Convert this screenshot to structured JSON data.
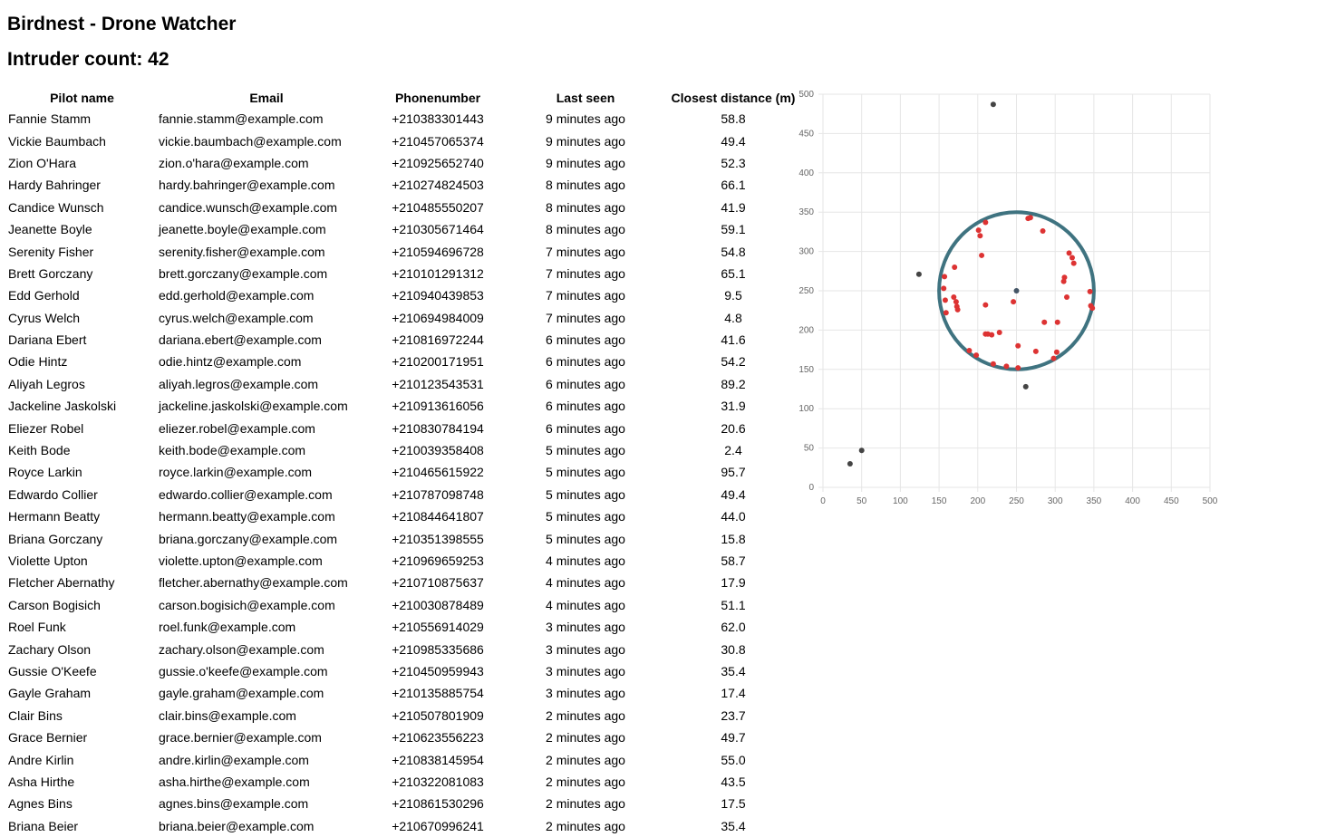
{
  "header": {
    "title": "Birdnest - Drone Watcher",
    "intruder_label": "Intruder count:",
    "intruder_count": "42"
  },
  "table": {
    "columns": [
      "Pilot name",
      "Email",
      "Phonenumber",
      "Last seen",
      "Closest distance (m)"
    ],
    "rows": [
      [
        "Fannie Stamm",
        "fannie.stamm@example.com",
        "+210383301443",
        "9 minutes ago",
        "58.8"
      ],
      [
        "Vickie Baumbach",
        "vickie.baumbach@example.com",
        "+210457065374",
        "9 minutes ago",
        "49.4"
      ],
      [
        "Zion O'Hara",
        "zion.o'hara@example.com",
        "+210925652740",
        "9 minutes ago",
        "52.3"
      ],
      [
        "Hardy Bahringer",
        "hardy.bahringer@example.com",
        "+210274824503",
        "8 minutes ago",
        "66.1"
      ],
      [
        "Candice Wunsch",
        "candice.wunsch@example.com",
        "+210485550207",
        "8 minutes ago",
        "41.9"
      ],
      [
        "Jeanette Boyle",
        "jeanette.boyle@example.com",
        "+210305671464",
        "8 minutes ago",
        "59.1"
      ],
      [
        "Serenity Fisher",
        "serenity.fisher@example.com",
        "+210594696728",
        "7 minutes ago",
        "54.8"
      ],
      [
        "Brett Gorczany",
        "brett.gorczany@example.com",
        "+210101291312",
        "7 minutes ago",
        "65.1"
      ],
      [
        "Edd Gerhold",
        "edd.gerhold@example.com",
        "+210940439853",
        "7 minutes ago",
        "9.5"
      ],
      [
        "Cyrus Welch",
        "cyrus.welch@example.com",
        "+210694984009",
        "7 minutes ago",
        "4.8"
      ],
      [
        "Dariana Ebert",
        "dariana.ebert@example.com",
        "+210816972244",
        "6 minutes ago",
        "41.6"
      ],
      [
        "Odie Hintz",
        "odie.hintz@example.com",
        "+210200171951",
        "6 minutes ago",
        "54.2"
      ],
      [
        "Aliyah Legros",
        "aliyah.legros@example.com",
        "+210123543531",
        "6 minutes ago",
        "89.2"
      ],
      [
        "Jackeline Jaskolski",
        "jackeline.jaskolski@example.com",
        "+210913616056",
        "6 minutes ago",
        "31.9"
      ],
      [
        "Eliezer Robel",
        "eliezer.robel@example.com",
        "+210830784194",
        "6 minutes ago",
        "20.6"
      ],
      [
        "Keith Bode",
        "keith.bode@example.com",
        "+210039358408",
        "5 minutes ago",
        "2.4"
      ],
      [
        "Royce Larkin",
        "royce.larkin@example.com",
        "+210465615922",
        "5 minutes ago",
        "95.7"
      ],
      [
        "Edwardo Collier",
        "edwardo.collier@example.com",
        "+210787098748",
        "5 minutes ago",
        "49.4"
      ],
      [
        "Hermann Beatty",
        "hermann.beatty@example.com",
        "+210844641807",
        "5 minutes ago",
        "44.0"
      ],
      [
        "Briana Gorczany",
        "briana.gorczany@example.com",
        "+210351398555",
        "5 minutes ago",
        "15.8"
      ],
      [
        "Violette Upton",
        "violette.upton@example.com",
        "+210969659253",
        "4 minutes ago",
        "58.7"
      ],
      [
        "Fletcher Abernathy",
        "fletcher.abernathy@example.com",
        "+210710875637",
        "4 minutes ago",
        "17.9"
      ],
      [
        "Carson Bogisich",
        "carson.bogisich@example.com",
        "+210030878489",
        "4 minutes ago",
        "51.1"
      ],
      [
        "Roel Funk",
        "roel.funk@example.com",
        "+210556914029",
        "3 minutes ago",
        "62.0"
      ],
      [
        "Zachary Olson",
        "zachary.olson@example.com",
        "+210985335686",
        "3 minutes ago",
        "30.8"
      ],
      [
        "Gussie O'Keefe",
        "gussie.o'keefe@example.com",
        "+210450959943",
        "3 minutes ago",
        "35.4"
      ],
      [
        "Gayle Graham",
        "gayle.graham@example.com",
        "+210135885754",
        "3 minutes ago",
        "17.4"
      ],
      [
        "Clair Bins",
        "clair.bins@example.com",
        "+210507801909",
        "2 minutes ago",
        "23.7"
      ],
      [
        "Grace Bernier",
        "grace.bernier@example.com",
        "+210623556223",
        "2 minutes ago",
        "49.7"
      ],
      [
        "Andre Kirlin",
        "andre.kirlin@example.com",
        "+210838145954",
        "2 minutes ago",
        "55.0"
      ],
      [
        "Asha Hirthe",
        "asha.hirthe@example.com",
        "+210322081083",
        "2 minutes ago",
        "43.5"
      ],
      [
        "Agnes Bins",
        "agnes.bins@example.com",
        "+210861530296",
        "2 minutes ago",
        "17.5"
      ],
      [
        "Briana Beier",
        "briana.beier@example.com",
        "+210670996241",
        "2 minutes ago",
        "35.4"
      ]
    ]
  },
  "chart_data": {
    "type": "scatter",
    "xlim": [
      0,
      500
    ],
    "ylim": [
      0,
      500
    ],
    "x_ticks": [
      0,
      50,
      100,
      150,
      200,
      250,
      300,
      350,
      400,
      450,
      500
    ],
    "y_ticks": [
      0,
      50,
      100,
      150,
      200,
      250,
      300,
      350,
      400,
      450,
      500
    ],
    "grid": true,
    "zone": {
      "cx": 250,
      "cy": 250,
      "r": 100,
      "color": "#3f7380"
    },
    "center": {
      "x": 250,
      "y": 250,
      "color": "#445566"
    },
    "series": [
      {
        "color": "#dd3333",
        "points": [
          [
            157,
            268
          ],
          [
            156,
            253
          ],
          [
            158,
            238
          ],
          [
            159,
            222
          ],
          [
            170,
            280
          ],
          [
            169,
            242
          ],
          [
            172,
            236
          ],
          [
            173,
            230
          ],
          [
            174,
            226
          ],
          [
            201,
            327
          ],
          [
            203,
            320
          ],
          [
            205,
            295
          ],
          [
            210,
            337
          ],
          [
            210,
            232
          ],
          [
            213,
            195
          ],
          [
            218,
            194
          ],
          [
            189,
            174
          ],
          [
            198,
            168
          ],
          [
            210,
            195
          ],
          [
            228,
            197
          ],
          [
            246,
            236
          ],
          [
            252,
            180
          ],
          [
            265,
            342
          ],
          [
            268,
            343
          ],
          [
            286,
            210
          ],
          [
            303,
            210
          ],
          [
            284,
            326
          ],
          [
            318,
            298
          ],
          [
            322,
            292
          ],
          [
            324,
            285
          ],
          [
            312,
            267
          ],
          [
            311,
            262
          ],
          [
            315,
            242
          ],
          [
            346,
            231
          ],
          [
            348,
            228
          ],
          [
            345,
            249
          ],
          [
            302,
            172
          ],
          [
            298,
            164
          ],
          [
            275,
            173
          ],
          [
            252,
            152
          ],
          [
            237,
            154
          ],
          [
            220,
            157
          ]
        ]
      },
      {
        "color": "#444444",
        "points": [
          [
            220,
            487
          ],
          [
            124,
            271
          ],
          [
            50,
            47
          ],
          [
            35,
            30
          ],
          [
            262,
            128
          ]
        ]
      }
    ]
  }
}
